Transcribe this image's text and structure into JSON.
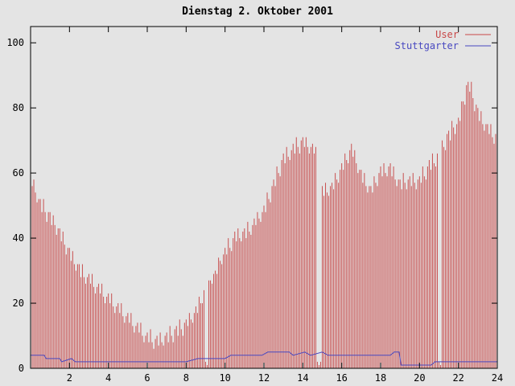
{
  "title": "Dienstag 2. Oktober 2001",
  "colors": {
    "background": "#e4e4e4",
    "border": "#000000",
    "user_red": "#c85050",
    "stuttgarter_blue": "#4848c0",
    "text": "#000000"
  },
  "legend": {
    "position": "top-right",
    "entries": [
      {
        "label": "User",
        "color": "#c84848"
      },
      {
        "label": "Stuttgarter",
        "color": "#4848c0"
      }
    ]
  },
  "chart_data": {
    "type": "bar",
    "title": "Dienstag 2. Oktober 2001",
    "xlabel": "",
    "ylabel": "",
    "xlim": [
      0,
      24
    ],
    "ylim": [
      0,
      105
    ],
    "xticks": [
      2,
      4,
      6,
      8,
      10,
      12,
      14,
      16,
      18,
      20,
      22,
      24
    ],
    "yticks": [
      0,
      20,
      40,
      60,
      80,
      100
    ],
    "grid": false,
    "legend_position": "top-right",
    "series": [
      {
        "name": "User",
        "type": "bar",
        "color": "#c85050",
        "x_start": 0,
        "x_step": 0.0833333,
        "values": [
          60,
          56,
          58,
          54,
          51,
          52,
          52,
          48,
          52,
          48,
          45,
          48,
          48,
          44,
          47,
          44,
          41,
          43,
          43,
          39,
          42,
          38,
          35,
          37,
          37,
          33,
          36,
          32,
          30,
          32,
          32,
          28,
          32,
          28,
          26,
          28,
          29,
          26,
          29,
          25,
          23,
          25,
          26,
          23,
          26,
          22,
          20,
          22,
          23,
          20,
          23,
          19,
          17,
          19,
          20,
          17,
          20,
          16,
          14,
          16,
          17,
          14,
          17,
          13,
          11,
          13,
          14,
          11,
          14,
          10,
          8,
          10,
          11,
          8,
          12,
          8,
          6,
          9,
          10,
          7,
          11,
          8,
          7,
          10,
          11,
          8,
          13,
          10,
          8,
          12,
          13,
          10,
          15,
          12,
          10,
          14,
          15,
          13,
          17,
          15,
          14,
          17,
          19,
          17,
          22,
          20,
          20,
          24,
          2,
          1,
          27,
          27,
          26,
          29,
          30,
          29,
          34,
          33,
          32,
          35,
          37,
          35,
          40,
          37,
          36,
          40,
          42,
          39,
          43,
          40,
          39,
          42,
          43,
          40,
          45,
          42,
          41,
          44,
          46,
          44,
          48,
          46,
          45,
          48,
          50,
          48,
          54,
          52,
          51,
          56,
          58,
          56,
          62,
          60,
          59,
          64,
          66,
          63,
          68,
          65,
          64,
          67,
          69,
          66,
          71,
          68,
          66,
          70,
          71,
          68,
          71,
          68,
          66,
          68,
          69,
          66,
          68,
          2,
          1,
          2,
          56,
          53,
          57,
          54,
          53,
          56,
          57,
          55,
          60,
          58,
          57,
          61,
          63,
          61,
          66,
          64,
          63,
          67,
          69,
          65,
          67,
          63,
          60,
          61,
          61,
          57,
          60,
          56,
          54,
          56,
          56,
          54,
          59,
          57,
          56,
          60,
          62,
          59,
          63,
          60,
          59,
          62,
          63,
          59,
          62,
          58,
          56,
          58,
          58,
          55,
          60,
          57,
          55,
          58,
          59,
          56,
          60,
          57,
          55,
          58,
          59,
          57,
          62,
          59,
          58,
          62,
          64,
          61,
          66,
          63,
          62,
          66,
          2,
          1,
          70,
          68,
          67,
          72,
          73,
          70,
          76,
          74,
          72,
          75,
          77,
          76,
          82,
          82,
          81,
          87,
          88,
          85,
          88,
          83,
          79,
          81,
          80,
          76,
          79,
          75,
          73,
          75,
          75,
          72,
          75,
          71,
          69,
          72
        ]
      },
      {
        "name": "Stuttgarter",
        "type": "line",
        "color": "#4848c0",
        "points": [
          [
            0,
            4
          ],
          [
            0.7,
            4
          ],
          [
            0.8,
            3
          ],
          [
            1.5,
            3
          ],
          [
            1.6,
            2
          ],
          [
            2.1,
            3
          ],
          [
            2.3,
            2
          ],
          [
            3,
            2
          ],
          [
            4,
            2
          ],
          [
            5,
            2
          ],
          [
            6,
            2
          ],
          [
            7,
            2
          ],
          [
            8,
            2
          ],
          [
            8.6,
            3
          ],
          [
            10,
            3
          ],
          [
            10.3,
            4
          ],
          [
            11.9,
            4
          ],
          [
            12.2,
            5
          ],
          [
            13.3,
            5
          ],
          [
            13.5,
            4
          ],
          [
            14.1,
            5
          ],
          [
            14.4,
            4
          ],
          [
            15,
            5
          ],
          [
            15.3,
            4
          ],
          [
            18.5,
            4
          ],
          [
            18.7,
            5
          ],
          [
            18.95,
            5
          ],
          [
            19.05,
            1
          ],
          [
            20.6,
            1
          ],
          [
            20.8,
            2
          ],
          [
            24,
            2
          ]
        ]
      }
    ]
  }
}
